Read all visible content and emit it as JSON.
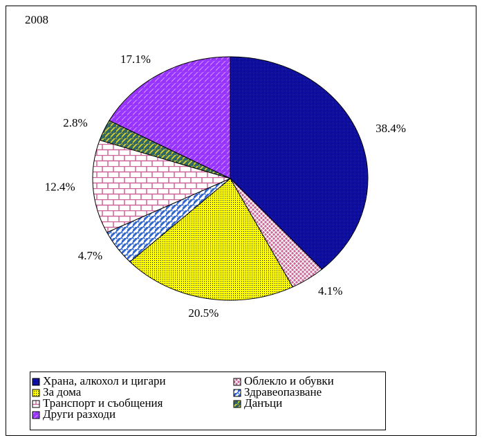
{
  "chart_data": {
    "type": "pie",
    "title": "2008",
    "categories": [
      "Храна, алкохол и цигари",
      "Облекло и обувки",
      "За дома",
      "Здравеопазване",
      "Транспорт и съобщения",
      "Данъци",
      "Други разходи"
    ],
    "values": [
      38.4,
      4.1,
      20.5,
      4.7,
      12.4,
      2.8,
      17.1
    ],
    "value_labels": [
      "38.4%",
      "4.1%",
      "20.5%",
      "4.7%",
      "12.4%",
      "2.8%",
      "17.1%"
    ],
    "colors": [
      "#000099",
      "#cc6699",
      "#ffff00",
      "#3366cc",
      "#cc6699",
      "#336666",
      "#9933ff"
    ],
    "legend": "bottom"
  }
}
